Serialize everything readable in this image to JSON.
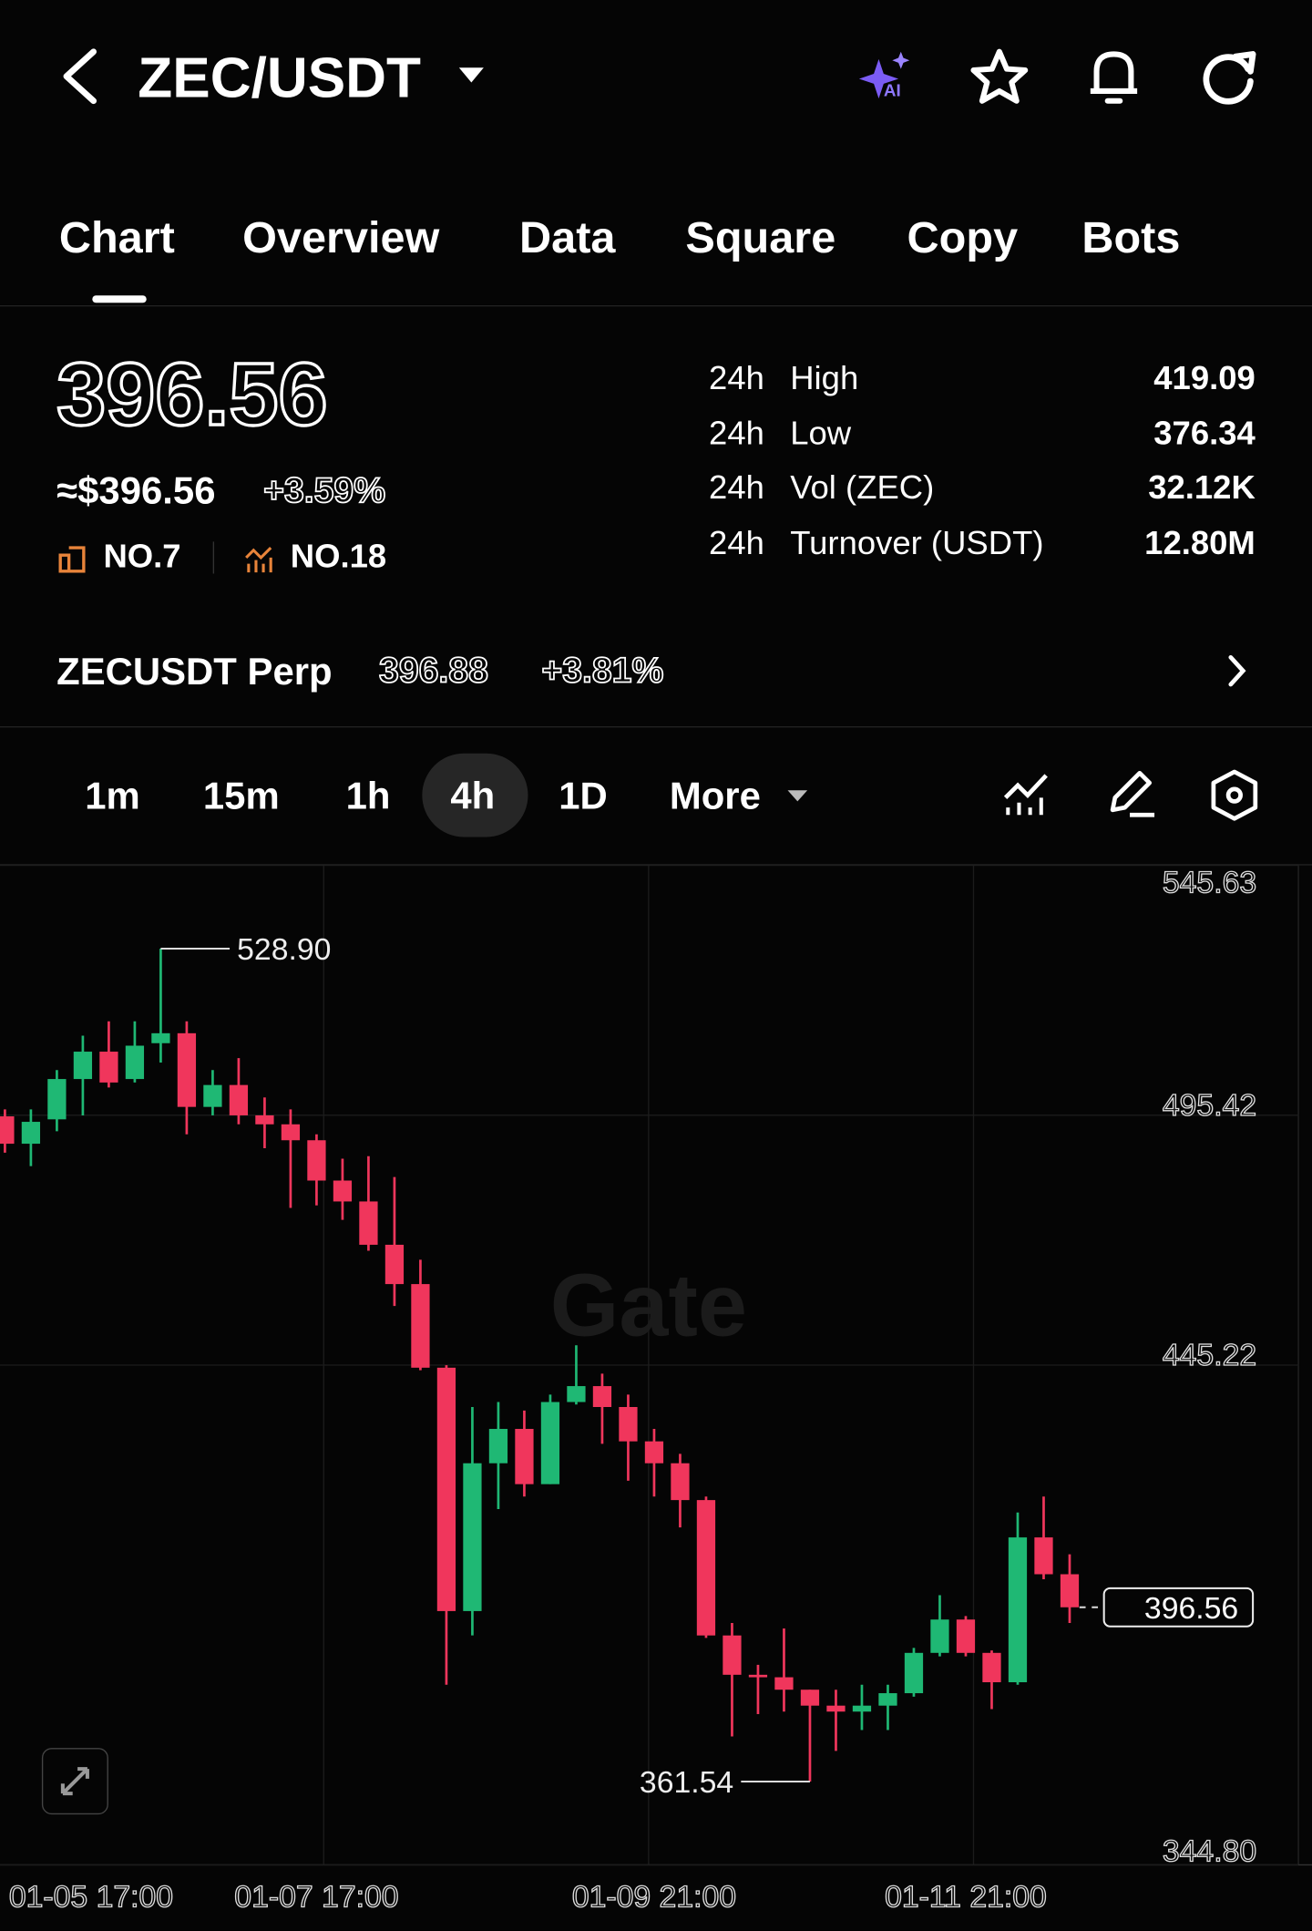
{
  "header": {
    "pair": "ZEC/USDT"
  },
  "tabs": [
    "Chart",
    "Overview",
    "Data",
    "Square",
    "Copy",
    "Bots"
  ],
  "ticker": {
    "price": "396.56",
    "usd_price": "≈$396.56",
    "change": "+3.59%",
    "rank_1": "NO.7",
    "rank_2": "NO.18"
  },
  "stats": [
    {
      "period": "24h",
      "label": "High",
      "value": "419.09"
    },
    {
      "period": "24h",
      "label": "Low",
      "value": "376.34"
    },
    {
      "period": "24h",
      "label": "Vol (ZEC)",
      "value": "32.12K"
    },
    {
      "period": "24h",
      "label": "Turnover (USDT)",
      "value": "12.80M"
    }
  ],
  "perp": {
    "name": "ZECUSDT Perp",
    "price": "396.88",
    "change": "+3.81%"
  },
  "intervals": [
    "1m",
    "15m",
    "1h",
    "4h",
    "1D",
    "More"
  ],
  "watermark": "Gate",
  "chart_data": {
    "type": "candlestick",
    "categories": [
      null,
      null,
      null,
      "01-05 17:00",
      null,
      null,
      null,
      null,
      null,
      null,
      null,
      null,
      "01-07 17:00",
      null,
      null,
      null,
      null,
      null,
      null,
      null,
      null,
      null,
      null,
      null,
      null,
      "01-09 21:00",
      null,
      null,
      null,
      null,
      null,
      null,
      null,
      null,
      null,
      null,
      null,
      "01-11 21:00",
      null,
      null,
      null,
      null
    ],
    "open": [
      495.2,
      489.7,
      494.6,
      502.7,
      508.2,
      502.7,
      509.9,
      511.9,
      497.1,
      501.5,
      495.4,
      493.6,
      490.4,
      482.3,
      478.1,
      469.4,
      461.5,
      444.7,
      395.8,
      425.5,
      432.4,
      421.3,
      437.8,
      441.0,
      436.8,
      429.9,
      425.5,
      418.1,
      390.9,
      383.0,
      382.5,
      380.0,
      376.8,
      375.6,
      376.8,
      379.3,
      387.4,
      394.1,
      387.4,
      381.5,
      410.6,
      403.2
    ],
    "high": [
      496.6,
      496.6,
      504.5,
      511.4,
      514.3,
      514.3,
      528.9,
      514.3,
      504.5,
      506.9,
      499.0,
      496.6,
      491.6,
      486.7,
      487.2,
      483.0,
      466.4,
      445.2,
      436.8,
      437.8,
      436.1,
      439.3,
      449.2,
      443.5,
      439.3,
      432.4,
      427.4,
      418.8,
      393.4,
      385.0,
      392.3,
      380.0,
      380.0,
      381.0,
      381.0,
      388.4,
      399.0,
      394.8,
      387.9,
      415.6,
      418.8,
      407.2
    ],
    "low": [
      487.9,
      485.2,
      492.2,
      495.4,
      501.0,
      502.0,
      506.0,
      491.6,
      495.4,
      493.6,
      488.8,
      476.8,
      477.3,
      474.4,
      468.2,
      457.1,
      444.2,
      381.0,
      390.9,
      416.3,
      418.8,
      421.3,
      437.3,
      429.4,
      422.0,
      418.8,
      412.6,
      390.4,
      370.6,
      375.1,
      375.6,
      361.54,
      367.7,
      371.9,
      371.9,
      378.6,
      386.7,
      386.7,
      376.1,
      381.0,
      402.2,
      393.4
    ],
    "close": [
      489.7,
      494.1,
      502.7,
      508.2,
      502.0,
      509.4,
      511.9,
      497.1,
      501.5,
      495.4,
      493.6,
      490.4,
      482.3,
      478.1,
      469.4,
      461.5,
      444.7,
      395.8,
      425.5,
      432.4,
      421.3,
      437.8,
      441.0,
      436.8,
      429.9,
      425.5,
      418.1,
      390.9,
      383.0,
      382.5,
      380.0,
      376.8,
      375.6,
      376.8,
      379.3,
      387.4,
      394.1,
      387.4,
      381.5,
      410.6,
      403.2,
      396.56
    ],
    "ylim": [
      344.8,
      545.63
    ],
    "yticks": [
      {
        "value": 344.8,
        "label": "344.80"
      },
      445.22,
      495.42,
      545.63
    ],
    "grid": true,
    "last_price": 396.56,
    "annotations": [
      {
        "value": 528.9,
        "label": "528.90"
      },
      {
        "value": 361.54,
        "label": "361.54"
      }
    ],
    "up_color": "#1fb874",
    "down_color": "#f0365c"
  }
}
